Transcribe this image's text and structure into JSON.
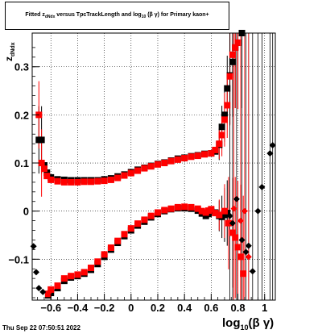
{
  "chart_data": {
    "type": "scatter",
    "title_main": "Fitted  z",
    "title_sub": "dNdx",
    "title_mid": " versus TpcTrackLength and log",
    "title_sub2": "10",
    "title_tail": " (β γ) for Primary kaon+",
    "xlabel_main": "log",
    "xlabel_sub": "10",
    "xlabel_tail": "(β γ)",
    "ylabel_main": "z",
    "ylabel_sub": "dNdx",
    "xlim": [
      -0.74,
      1.08
    ],
    "ylim": [
      -0.185,
      0.37
    ],
    "x_ticks": [
      -0.6,
      -0.4,
      -0.2,
      0,
      0.2,
      0.4,
      0.6,
      0.8,
      1
    ],
    "x_tick_labels": [
      "−0.6",
      "−0.4",
      "−0.2",
      "0",
      "0.2",
      "0.4",
      "0.6",
      "0.8",
      "1"
    ],
    "y_ticks": [
      -0.1,
      0,
      0.1,
      0.2,
      0.3
    ],
    "y_tick_labels": [
      "−0.1",
      "0",
      "0.1",
      "0.2",
      "0.3"
    ],
    "grid": true,
    "series": [
      {
        "color": "#000000",
        "marker": "square",
        "points": [
          [
            -0.69,
            0.148
          ],
          [
            -0.67,
            0.148
          ],
          [
            -0.65,
            0.095
          ],
          [
            -0.63,
            0.08
          ],
          [
            -0.6,
            0.07
          ],
          [
            -0.55,
            0.066
          ],
          [
            -0.5,
            0.065
          ],
          [
            -0.45,
            0.064
          ],
          [
            -0.4,
            0.064
          ],
          [
            -0.35,
            0.064
          ],
          [
            -0.3,
            0.064
          ],
          [
            -0.25,
            0.064
          ],
          [
            -0.2,
            0.066
          ],
          [
            -0.15,
            0.068
          ],
          [
            -0.1,
            0.072
          ],
          [
            -0.05,
            0.076
          ],
          [
            0.0,
            0.081
          ],
          [
            0.05,
            0.086
          ],
          [
            0.1,
            0.09
          ],
          [
            0.15,
            0.094
          ],
          [
            0.2,
            0.098
          ],
          [
            0.25,
            0.101
          ],
          [
            0.3,
            0.105
          ],
          [
            0.35,
            0.109
          ],
          [
            0.4,
            0.111
          ],
          [
            0.45,
            0.114
          ],
          [
            0.5,
            0.116
          ],
          [
            0.55,
            0.119
          ],
          [
            0.6,
            0.12
          ],
          [
            0.63,
            0.124
          ],
          [
            0.66,
            0.138
          ],
          [
            0.68,
            0.175
          ],
          [
            0.7,
            0.2
          ],
          [
            0.72,
            0.255
          ],
          [
            0.74,
            0.282
          ],
          [
            0.76,
            0.31
          ],
          [
            0.78,
            0.34
          ],
          [
            0.8,
            0.35
          ],
          [
            0.83,
            0.37
          ]
        ]
      },
      {
        "color": "#ff0000",
        "marker": "square",
        "points": [
          [
            -0.69,
            0.2
          ],
          [
            -0.67,
            0.1
          ],
          [
            -0.65,
            0.088
          ],
          [
            -0.63,
            0.073
          ],
          [
            -0.6,
            0.065
          ],
          [
            -0.55,
            0.062
          ],
          [
            -0.5,
            0.06
          ],
          [
            -0.45,
            0.06
          ],
          [
            -0.4,
            0.06
          ],
          [
            -0.35,
            0.061
          ],
          [
            -0.3,
            0.061
          ],
          [
            -0.25,
            0.062
          ],
          [
            -0.2,
            0.063
          ],
          [
            -0.15,
            0.065
          ],
          [
            -0.1,
            0.069
          ],
          [
            -0.05,
            0.074
          ],
          [
            0.0,
            0.079
          ],
          [
            0.05,
            0.084
          ],
          [
            0.1,
            0.089
          ],
          [
            0.15,
            0.093
          ],
          [
            0.2,
            0.097
          ],
          [
            0.25,
            0.1
          ],
          [
            0.3,
            0.104
          ],
          [
            0.35,
            0.107
          ],
          [
            0.4,
            0.11
          ],
          [
            0.45,
            0.113
          ],
          [
            0.5,
            0.115
          ],
          [
            0.55,
            0.118
          ],
          [
            0.6,
            0.12
          ],
          [
            0.63,
            0.127
          ],
          [
            0.66,
            0.14
          ],
          [
            0.68,
            0.158
          ],
          [
            0.7,
            0.19
          ],
          [
            0.72,
            0.22
          ],
          [
            0.74,
            0.28
          ],
          [
            0.76,
            0.325
          ],
          [
            0.78,
            0.34
          ],
          [
            0.8,
            0.35
          ]
        ]
      },
      {
        "color": "#000000",
        "marker": "square",
        "points": [
          [
            -0.62,
            -0.175
          ],
          [
            -0.6,
            -0.17
          ],
          [
            -0.55,
            -0.16
          ],
          [
            -0.5,
            -0.145
          ],
          [
            -0.45,
            -0.138
          ],
          [
            -0.4,
            -0.135
          ],
          [
            -0.35,
            -0.13
          ],
          [
            -0.3,
            -0.122
          ],
          [
            -0.25,
            -0.11
          ],
          [
            -0.2,
            -0.095
          ],
          [
            -0.15,
            -0.08
          ],
          [
            -0.1,
            -0.066
          ],
          [
            -0.05,
            -0.052
          ],
          [
            0.0,
            -0.04
          ],
          [
            0.05,
            -0.03
          ],
          [
            0.1,
            -0.022
          ],
          [
            0.15,
            -0.013
          ],
          [
            0.2,
            -0.006
          ],
          [
            0.25,
            0.0
          ],
          [
            0.3,
            0.004
          ],
          [
            0.35,
            0.006
          ],
          [
            0.4,
            0.006
          ],
          [
            0.45,
            0.005
          ],
          [
            0.5,
            0.001
          ],
          [
            0.53,
            -0.005
          ],
          [
            0.56,
            -0.01
          ],
          [
            0.58,
            -0.006
          ],
          [
            0.6,
            0.0
          ],
          [
            0.63,
            -0.003
          ],
          [
            0.66,
            -0.01
          ],
          [
            0.68,
            -0.012
          ],
          [
            0.7,
            -0.008
          ],
          [
            0.72,
            -0.004
          ]
        ]
      },
      {
        "color": "#ff0000",
        "marker": "square",
        "points": [
          [
            -0.62,
            -0.172
          ],
          [
            -0.6,
            -0.163
          ],
          [
            -0.55,
            -0.155
          ],
          [
            -0.5,
            -0.14
          ],
          [
            -0.45,
            -0.135
          ],
          [
            -0.4,
            -0.132
          ],
          [
            -0.35,
            -0.127
          ],
          [
            -0.3,
            -0.118
          ],
          [
            -0.25,
            -0.105
          ],
          [
            -0.2,
            -0.09
          ],
          [
            -0.15,
            -0.076
          ],
          [
            -0.1,
            -0.062
          ],
          [
            -0.05,
            -0.048
          ],
          [
            0.0,
            -0.036
          ],
          [
            0.05,
            -0.026
          ],
          [
            0.1,
            -0.018
          ],
          [
            0.15,
            -0.01
          ],
          [
            0.2,
            -0.003
          ],
          [
            0.25,
            0.002
          ],
          [
            0.3,
            0.005
          ],
          [
            0.35,
            0.008
          ],
          [
            0.4,
            0.009
          ],
          [
            0.45,
            0.008
          ],
          [
            0.5,
            0.005
          ],
          [
            0.53,
            0.0
          ],
          [
            0.56,
            -0.003
          ],
          [
            0.58,
            0.001
          ],
          [
            0.6,
            0.004
          ],
          [
            0.63,
            -0.004
          ],
          [
            0.66,
            -0.008
          ],
          [
            0.7,
            0.0
          ],
          [
            0.73,
            -0.025
          ],
          [
            0.76,
            -0.045
          ],
          [
            0.78,
            -0.055
          ],
          [
            0.8,
            -0.075
          ],
          [
            0.82,
            -0.095
          ],
          [
            0.84,
            -0.13
          ]
        ]
      }
    ],
    "diamond_series": [
      {
        "color": "#000000",
        "points": [
          [
            -0.73,
            -0.073
          ],
          [
            -0.71,
            -0.127
          ],
          [
            -0.69,
            -0.16
          ],
          [
            -0.66,
            -0.168
          ],
          [
            0.74,
            -0.01
          ],
          [
            0.76,
            -0.025
          ],
          [
            0.79,
            0.025
          ],
          [
            0.83,
            -0.06
          ],
          [
            0.86,
            -0.085
          ],
          [
            0.88,
            -0.072
          ],
          [
            0.91,
            -0.125
          ],
          [
            0.95,
            0.0
          ],
          [
            0.98,
            0.05
          ],
          [
            1.04,
            0.12
          ],
          [
            1.06,
            0.137
          ]
        ]
      },
      {
        "color": "#ff0000",
        "points": [
          [
            0.77,
            0.005
          ],
          [
            0.82,
            -0.02
          ],
          [
            0.85,
            0.0
          ],
          [
            0.88,
            -0.095
          ]
        ]
      }
    ]
  },
  "footer": {
    "date": "Thu Sep 22 07:50:51 2022"
  }
}
